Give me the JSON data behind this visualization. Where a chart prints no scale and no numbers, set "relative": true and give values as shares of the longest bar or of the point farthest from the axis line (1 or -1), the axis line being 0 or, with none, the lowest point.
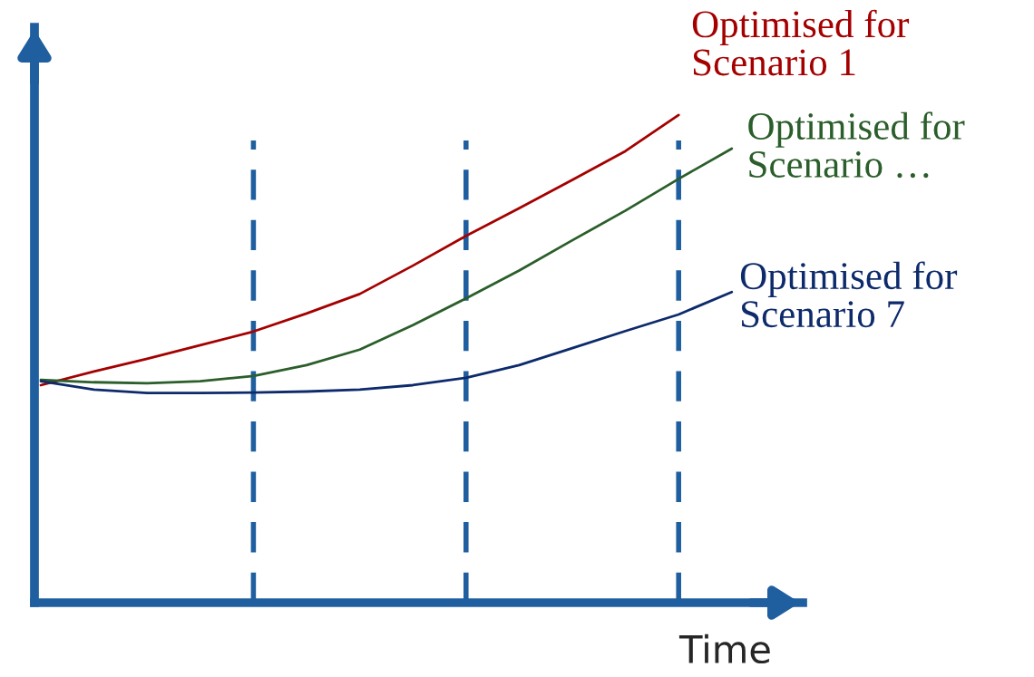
{
  "chart_data": {
    "type": "line",
    "relative": true,
    "xlabel": "Time",
    "marker": "none",
    "line_style": "solid",
    "categories": [
      null,
      null,
      null,
      null,
      null,
      null,
      null,
      null,
      null,
      null,
      null,
      null,
      null,
      null
    ],
    "series": [
      {
        "name": "Optimised for\nScenario 1",
        "color": "#a50000",
        "values": [
          0.446,
          0.474,
          0.5,
          0.528,
          0.556,
          0.593,
          0.633,
          0.691,
          0.752,
          0.809,
          0.867,
          0.926,
          1.0,
          null
        ]
      },
      {
        "name": "Optimised for\nScenario …",
        "color": "#2a5e2a",
        "values": [
          0.457,
          0.452,
          0.45,
          0.454,
          0.465,
          0.487,
          0.519,
          0.569,
          0.624,
          0.681,
          0.743,
          0.804,
          0.869,
          0.931
        ]
      },
      {
        "name": "Optimised for\nScenario 7",
        "color": "#0d2a6b",
        "values": [
          0.454,
          0.437,
          0.43,
          0.43,
          0.431,
          0.433,
          0.437,
          0.446,
          0.461,
          0.487,
          0.522,
          0.557,
          0.591,
          0.637
        ]
      }
    ],
    "grid": "x"
  }
}
